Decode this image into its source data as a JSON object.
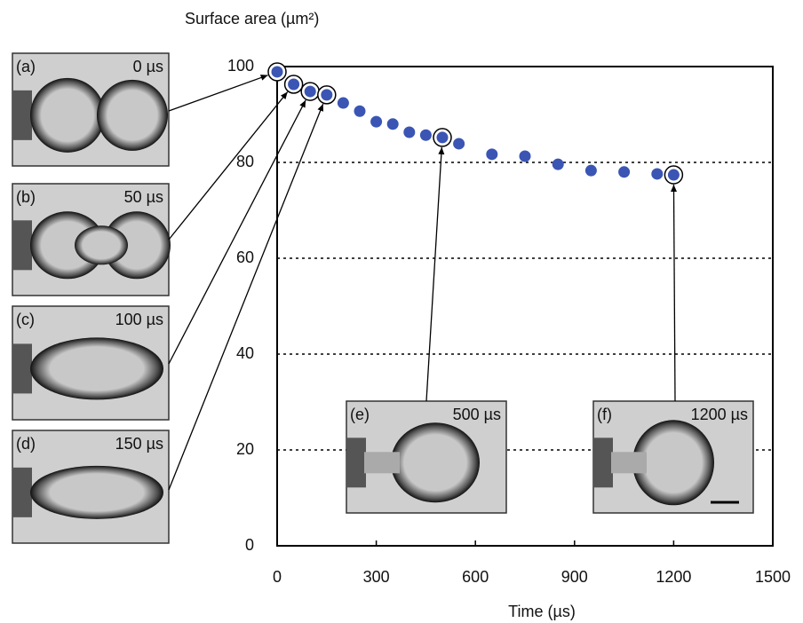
{
  "chart_data": {
    "type": "scatter",
    "y_label": "Surface area (µm²)",
    "x_label": "Time (µs)",
    "x": [
      0,
      50,
      100,
      150,
      200,
      250,
      300,
      350,
      400,
      450,
      500,
      550,
      650,
      750,
      850,
      950,
      1050,
      1150,
      1200
    ],
    "values": [
      98.9,
      96.3,
      94.8,
      94.1,
      92.4,
      90.7,
      88.5,
      88.0,
      86.3,
      85.7,
      85.2,
      83.9,
      81.7,
      81.3,
      79.6,
      78.3,
      78.0,
      77.6,
      77.4
    ],
    "color": "#3a55b4",
    "xlim": [
      0,
      1500
    ],
    "xticks": [
      0,
      300,
      600,
      900,
      1200,
      1500
    ],
    "ylim": [
      0,
      100
    ],
    "yticks": [
      0,
      20,
      40,
      60,
      80,
      100
    ],
    "grid": true,
    "insets": [
      {
        "label": "(a)",
        "time": "0 µs"
      },
      {
        "label": "(b)",
        "time": "50 µs"
      },
      {
        "label": "(c)",
        "time": "100 µs"
      },
      {
        "label": "(d)",
        "time": "150 µs"
      },
      {
        "label": "(e)",
        "time": "500 µs"
      },
      {
        "label": "(f)",
        "time": "1200 µs"
      }
    ]
  }
}
